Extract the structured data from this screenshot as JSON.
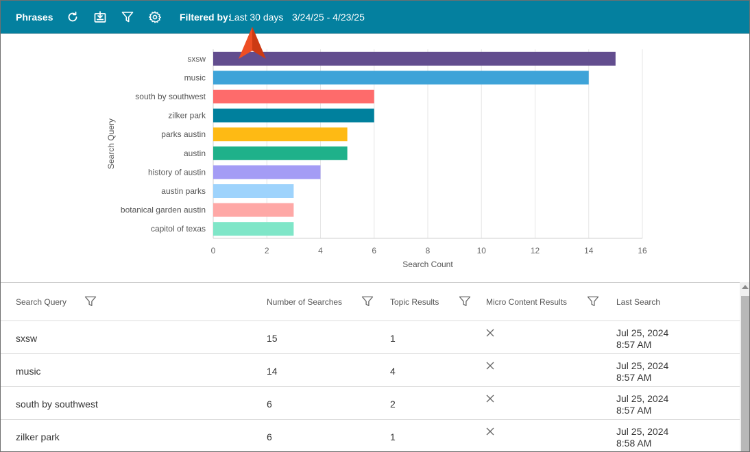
{
  "toolbar": {
    "title": "Phrases",
    "icons": [
      "refresh-icon",
      "download-icon",
      "filter-icon",
      "settings-icon"
    ],
    "filter_label": "Filtered by:",
    "filter_value": "Last 30 days",
    "date_range": "3/24/25 - 4/23/25",
    "background": "#04809f"
  },
  "annotation_color": "#ee4e24",
  "chart_data": {
    "type": "bar",
    "orientation": "horizontal",
    "categories": [
      "sxsw",
      "music",
      "south by southwest",
      "zilker park",
      "parks austin",
      "austin",
      "history of austin",
      "austin parks",
      "botanical garden austin",
      "capitol of texas"
    ],
    "values": [
      15,
      14,
      6,
      6,
      5,
      5,
      4,
      3,
      3,
      3
    ],
    "colors": [
      "#624d8e",
      "#3ea3d8",
      "#fe6b6b",
      "#00809d",
      "#feba14",
      "#1fb18a",
      "#a49cf5",
      "#9ed3fc",
      "#fea8a6",
      "#7fe6c8"
    ],
    "xlabel": "Search Count",
    "ylabel": "Search Query",
    "xlim": [
      0,
      16
    ],
    "xticks": [
      "0",
      "2",
      "4",
      "6",
      "8",
      "10",
      "12",
      "14",
      "16"
    ],
    "grid": true
  },
  "table": {
    "headers": {
      "query": "Search Query",
      "searches": "Number of Searches",
      "topic": "Topic Results",
      "micro": "Micro Content Results",
      "last": "Last Search"
    },
    "rows": [
      {
        "query": "sxsw",
        "searches": "15",
        "topic": "1",
        "micro": "close-icon",
        "date": "Jul 25, 2024",
        "time": "8:57 AM"
      },
      {
        "query": "music",
        "searches": "14",
        "topic": "4",
        "micro": "close-icon",
        "date": "Jul 25, 2024",
        "time": "8:57 AM"
      },
      {
        "query": "south by southwest",
        "searches": "6",
        "topic": "2",
        "micro": "close-icon",
        "date": "Jul 25, 2024",
        "time": "8:57 AM"
      },
      {
        "query": "zilker park",
        "searches": "6",
        "topic": "1",
        "micro": "close-icon",
        "date": "Jul 25, 2024",
        "time": "8:58 AM"
      }
    ]
  }
}
